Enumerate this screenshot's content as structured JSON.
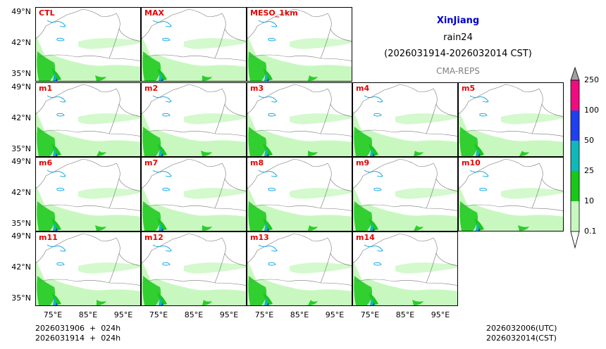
{
  "title": {
    "region": "XinJiang",
    "variable": "rain24",
    "period": "(2026031914-2026032014 CST)",
    "model": "CMA-REPS"
  },
  "panels": [
    {
      "label": "CTL"
    },
    {
      "label": "MAX"
    },
    {
      "label": "MESO_1km"
    },
    {
      "label": "m1"
    },
    {
      "label": "m2"
    },
    {
      "label": "m3"
    },
    {
      "label": "m4"
    },
    {
      "label": "m5"
    },
    {
      "label": "m6"
    },
    {
      "label": "m7"
    },
    {
      "label": "m8"
    },
    {
      "label": "m9"
    },
    {
      "label": "m10"
    },
    {
      "label": "m11"
    },
    {
      "label": "m12"
    },
    {
      "label": "m13"
    },
    {
      "label": "m14"
    }
  ],
  "axes": {
    "lat_ticks": [
      "49°N",
      "42°N",
      "35°N"
    ],
    "lon_ticks": [
      "75°E",
      "85°E",
      "95°E"
    ]
  },
  "colorbar": {
    "levels": [
      "0.1",
      "10",
      "25",
      "50",
      "100",
      "250"
    ],
    "colors": [
      "#c8f8c0",
      "#18c818",
      "#10b8b8",
      "#2040f0",
      "#f00c80",
      "#a0a0a0"
    ]
  },
  "footer": {
    "init_utc": "2026031906  +  024h",
    "init_cst": "2026031914  +  024h",
    "valid_utc": "2026032006(UTC)",
    "valid_cst": "2026032014(CST)"
  }
}
